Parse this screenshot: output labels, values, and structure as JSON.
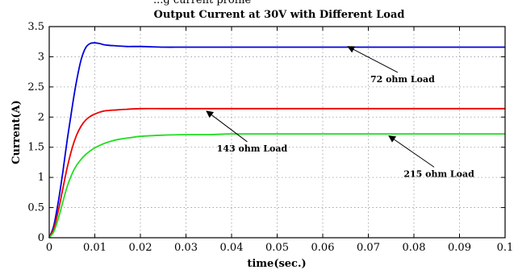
{
  "chart_data": {
    "type": "line",
    "title": "Output Current at 30V with Different Load",
    "top_cropped_text": "...g current profile",
    "xlabel": "time(sec.)",
    "ylabel": "Current(A)",
    "xlim": [
      0,
      0.1
    ],
    "ylim": [
      0,
      3.5
    ],
    "xticks": [
      "0",
      "0.01",
      "0.02",
      "0.03",
      "0.04",
      "0.05",
      "0.06",
      "0.07",
      "0.08",
      "0.09",
      "0.1"
    ],
    "xtick_values": [
      0,
      0.01,
      0.02,
      0.03,
      0.04,
      0.05,
      0.06,
      0.07,
      0.08,
      0.09,
      0.1
    ],
    "yticks": [
      "0",
      "0.5",
      "1",
      "1.5",
      "2",
      "2.5",
      "3",
      "3.5"
    ],
    "ytick_values": [
      0,
      0.5,
      1,
      1.5,
      2,
      2.5,
      3,
      3.5
    ],
    "grid": true,
    "series": [
      {
        "color": "#0000dd",
        "x": [
          0,
          0.001,
          0.002,
          0.003,
          0.004,
          0.005,
          0.006,
          0.007,
          0.008,
          0.009,
          0.01,
          0.011,
          0.012,
          0.013,
          0.015,
          0.017,
          0.02,
          0.025,
          0.03,
          0.04,
          0.05,
          0.06,
          0.07,
          0.08,
          0.09,
          0.1
        ],
        "y": [
          0,
          0.2,
          0.6,
          1.1,
          1.65,
          2.15,
          2.6,
          2.95,
          3.15,
          3.22,
          3.23,
          3.22,
          3.2,
          3.19,
          3.18,
          3.17,
          3.17,
          3.16,
          3.16,
          3.16,
          3.16,
          3.16,
          3.16,
          3.16,
          3.16,
          3.16
        ]
      },
      {
        "color": "#ee0000",
        "x": [
          0,
          0.001,
          0.002,
          0.003,
          0.004,
          0.005,
          0.006,
          0.007,
          0.008,
          0.009,
          0.01,
          0.011,
          0.012,
          0.013,
          0.015,
          0.017,
          0.02,
          0.025,
          0.03,
          0.04,
          0.05,
          0.06,
          0.07,
          0.08,
          0.09,
          0.1
        ],
        "y": [
          0,
          0.15,
          0.45,
          0.82,
          1.18,
          1.48,
          1.7,
          1.85,
          1.95,
          2.01,
          2.05,
          2.08,
          2.1,
          2.11,
          2.12,
          2.13,
          2.14,
          2.14,
          2.14,
          2.14,
          2.14,
          2.14,
          2.14,
          2.14,
          2.14,
          2.14
        ]
      },
      {
        "color": "#22dd22",
        "x": [
          0,
          0.001,
          0.002,
          0.003,
          0.004,
          0.005,
          0.006,
          0.007,
          0.008,
          0.009,
          0.01,
          0.012,
          0.014,
          0.016,
          0.018,
          0.02,
          0.025,
          0.03,
          0.035,
          0.04,
          0.05,
          0.06,
          0.07,
          0.08,
          0.09,
          0.1
        ],
        "y": [
          0,
          0.1,
          0.32,
          0.6,
          0.86,
          1.06,
          1.2,
          1.3,
          1.38,
          1.44,
          1.49,
          1.56,
          1.61,
          1.64,
          1.66,
          1.68,
          1.7,
          1.71,
          1.71,
          1.72,
          1.72,
          1.72,
          1.72,
          1.72,
          1.72,
          1.72
        ]
      }
    ],
    "annotations": [
      {
        "text": "72 ohm Load",
        "text_at": [
          0.0775,
          2.58
        ],
        "arrow_to": [
          0.0655,
          3.17
        ]
      },
      {
        "text": "143 ohm Load",
        "text_at": [
          0.0445,
          1.43
        ],
        "arrow_to": [
          0.0345,
          2.1
        ]
      },
      {
        "text": "215 ohm Load",
        "text_at": [
          0.0855,
          1.01
        ],
        "arrow_to": [
          0.0745,
          1.69
        ]
      }
    ]
  }
}
